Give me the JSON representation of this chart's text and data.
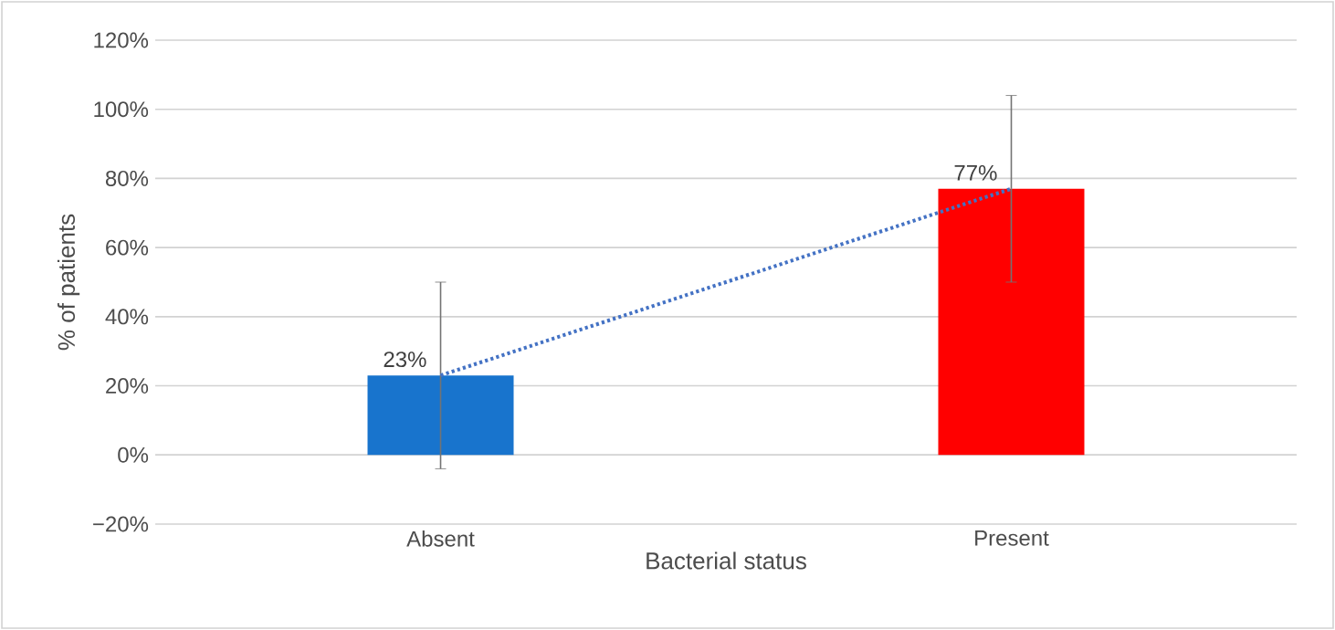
{
  "chart_data": {
    "type": "bar",
    "xlabel": "Bacterial status",
    "ylabel": "% of patients",
    "categories": [
      "Absent",
      "Present"
    ],
    "series": [
      {
        "colors": [
          "#1874cd",
          "#ff0000"
        ],
        "values": [
          23,
          77
        ],
        "errors": [
          27,
          27
        ],
        "value_labels": [
          "23%",
          "77%"
        ]
      },
      {
        "type": "line",
        "color": "#4472c4",
        "values": [
          23,
          77
        ],
        "line_style": "dotted",
        "marker": "none"
      }
    ],
    "ylim": [
      -20,
      120
    ],
    "yticks": [
      {
        "value": -20,
        "label": "−20%"
      },
      {
        "value": 0,
        "label": "0%"
      },
      {
        "value": 20,
        "label": "20%"
      },
      {
        "value": 40,
        "label": "40%"
      },
      {
        "value": 60,
        "label": "60%"
      },
      {
        "value": 80,
        "label": "80%"
      },
      {
        "value": 100,
        "label": "100%"
      },
      {
        "value": 120,
        "label": "120%"
      }
    ],
    "grid": "y"
  }
}
